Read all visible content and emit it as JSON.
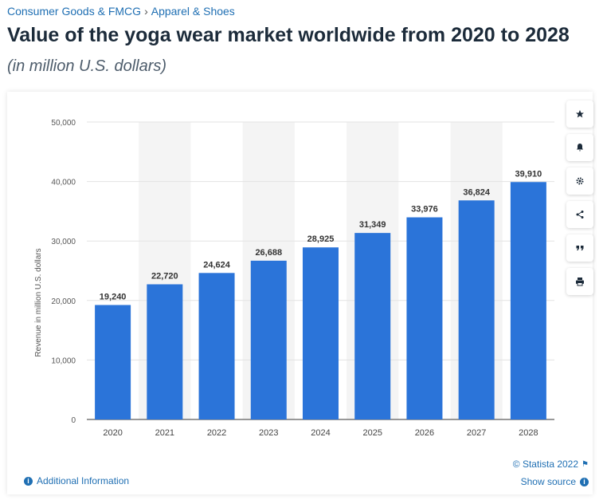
{
  "breadcrumb": {
    "category": "Consumer Goods & FMCG",
    "separator": "›",
    "subcategory": "Apparel & Shoes"
  },
  "header": {
    "title": "Value of the yoga wear market worldwide from 2020 to 2028",
    "subtitle": "(in million U.S. dollars)"
  },
  "toolbar": {
    "icons": [
      "star-icon",
      "bell-icon",
      "gear-icon",
      "share-icon",
      "quote-icon",
      "print-icon"
    ]
  },
  "footer": {
    "additional_info": "Additional Information",
    "credit": "© Statista 2022",
    "show_source": "Show source"
  },
  "colors": {
    "bar": "#2b74d9",
    "link": "#1f6fb3",
    "band": "#f4f4f4"
  },
  "chart_data": {
    "type": "bar",
    "categories": [
      "2020",
      "2021",
      "2022",
      "2023",
      "2024",
      "2025",
      "2026",
      "2027",
      "2028"
    ],
    "values": [
      19240,
      22720,
      24624,
      26688,
      28925,
      31349,
      33976,
      36824,
      39910
    ],
    "value_labels": [
      "19,240",
      "22,720",
      "24,624",
      "26,688",
      "28,925",
      "31,349",
      "33,976",
      "36,824",
      "39,910"
    ],
    "ylabel": "Revenue in million U.S. dollars",
    "xlabel": "",
    "ylim": [
      0,
      50000
    ],
    "yticks": [
      0,
      10000,
      20000,
      30000,
      40000,
      50000
    ],
    "ytick_labels": [
      "0",
      "10,000",
      "20,000",
      "30,000",
      "40,000",
      "50,000"
    ],
    "grid": true,
    "legend": "none"
  }
}
